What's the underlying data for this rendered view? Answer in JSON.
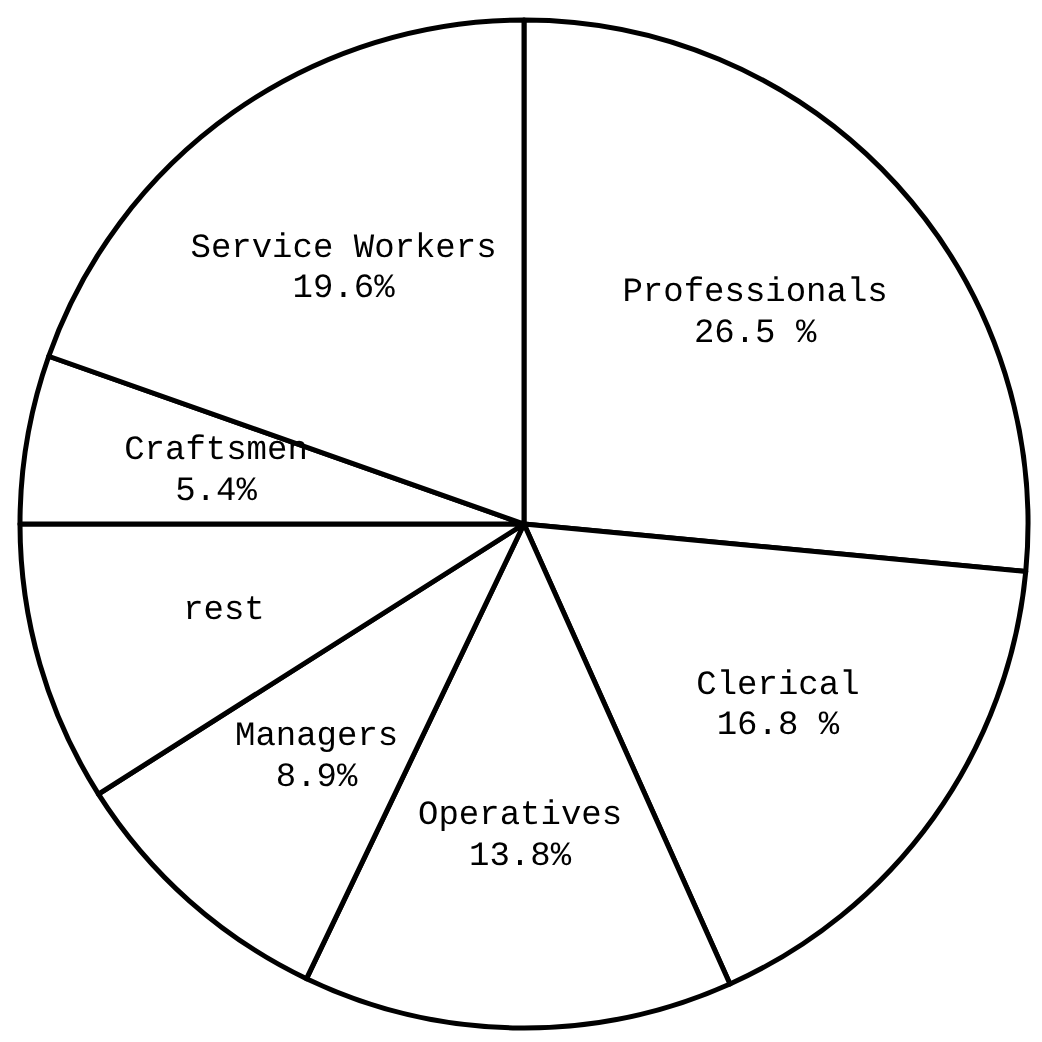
{
  "chart_data": {
    "type": "pie",
    "categories": [
      "Professionals",
      "Clerical",
      "Operatives",
      "Managers",
      "rest",
      "Craftsmen",
      "Service Workers"
    ],
    "values": [
      26.5,
      16.8,
      13.8,
      8.9,
      9.0,
      5.4,
      19.6
    ],
    "value_labels": [
      "26.5 %",
      "16.8 %",
      "13.8%",
      "8.9%",
      null,
      "5.4%",
      "19.6%"
    ],
    "colors": [
      "#ffffff",
      "#ffffff",
      "#ffffff",
      "#ffffff",
      "#ffffff",
      "#ffffff",
      "#ffffff"
    ]
  }
}
